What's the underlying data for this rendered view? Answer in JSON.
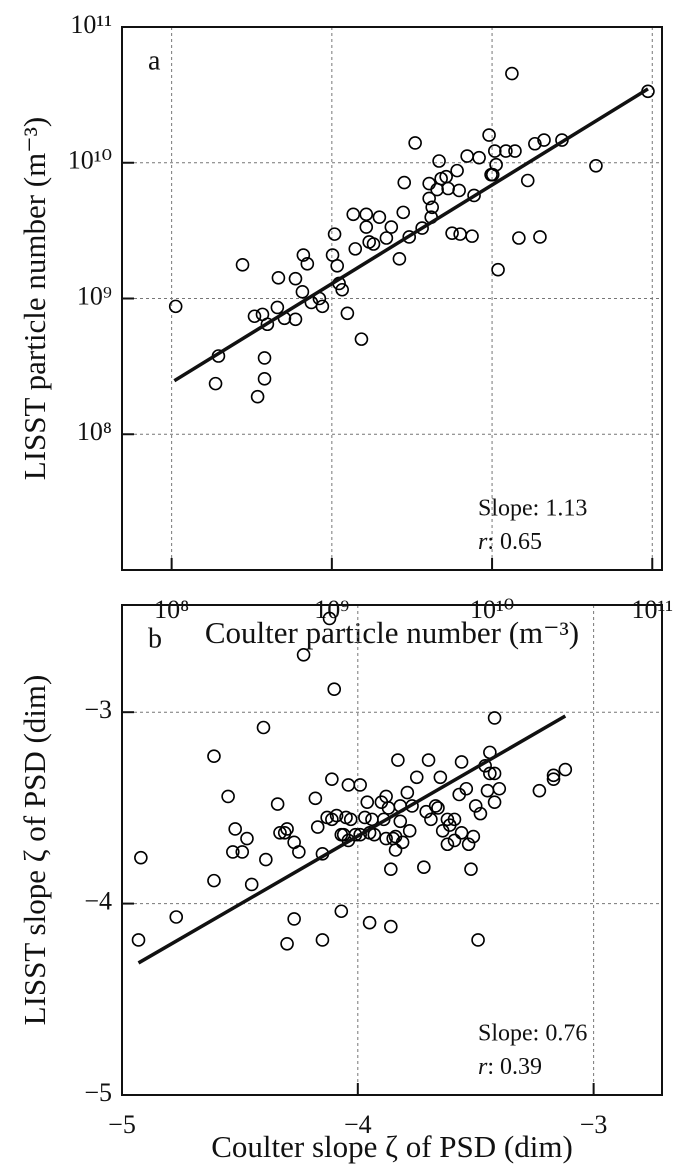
{
  "chart_data": [
    {
      "type": "scatter",
      "label": "a",
      "log": true,
      "grid": true,
      "xlabel": "Coulter particle number (m⁻³)",
      "ylabel": "LISST particle number (m⁻³)",
      "xlim": [
        49000000,
        115000000000
      ],
      "ylim": [
        10000000,
        100000000000
      ],
      "xticks": [
        {
          "value": 100000000,
          "label": "10⁸"
        },
        {
          "value": 1000000000,
          "label": "10⁹"
        },
        {
          "value": 10000000000,
          "label": "10¹⁰"
        },
        {
          "value": 100000000000,
          "label": "10¹¹"
        }
      ],
      "yticks": [
        {
          "value": 100000000,
          "label": "10⁸"
        },
        {
          "value": 1000000000,
          "label": "10⁹"
        },
        {
          "value": 10000000000,
          "label": "10¹⁰"
        },
        {
          "value": 100000000000,
          "label": "10¹¹"
        }
      ],
      "series": [
        {
          "color": "#000000",
          "x": [
            106000000.0,
            188000000.0,
            196000000.0,
            277000000.0,
            329000000.0,
            344000000.0,
            369000000.0,
            380000000.0,
            380000000.0,
            396000000.0,
            457000000.0,
            464000000.0,
            506000000.0,
            593000000.0,
            593000000.0,
            655000000.0,
            664000000.0,
            703000000.0,
            745000000.0,
            836000000.0,
            873000000.0,
            1010000000.0,
            1040000000.0,
            1080000000.0,
            1110000000.0,
            1160000000.0,
            1250000000.0,
            1360000000.0,
            1400000000.0,
            1530000000.0,
            1640000000.0,
            1640000000.0,
            1710000000.0,
            1820000000.0,
            1980000000.0,
            2190000000.0,
            2350000000.0,
            2640000000.0,
            2790000000.0,
            2830000000.0,
            3040000000.0,
            3310000000.0,
            3660000000.0,
            4050000000.0,
            4230000000.0,
            4540000000.0,
            4670000000.0,
            4810000000.0,
            5170000000.0,
            5320000000.0,
            5630000000.0,
            6050000000.0,
            6230000000.0,
            6990000000.0,
            7720000000.0,
            8300000000.0,
            9580000000.0,
            9860000000.0,
            10100000000.0,
            10400000000.0,
            10600000000.0,
            10900000000.0,
            12200000000.0,
            13900000000.0,
            14700000000.0,
            16700000000.0,
            18500000000.0,
            21100000000.0,
            27300000000.0,
            94000000000.0,
            13300000000.0,
            19900000000.0,
            7500000000.0,
            6320000000.0,
            4050000000.0,
            4170000000.0,
            44500000000.0
          ],
          "y": [
            875000000.0,
            236000000.0,
            377000000.0,
            1770000000.0,
            740000000.0,
            189000000.0,
            764000000.0,
            365000000.0,
            256000000.0,
            646000000.0,
            860000000.0,
            1420000000.0,
            715000000.0,
            1400000000.0,
            703000000.0,
            1120000000.0,
            2090000000.0,
            1800000000.0,
            935000000.0,
            1000000000.0,
            875000000.0,
            2090000000.0,
            2980000000.0,
            1740000000.0,
            1290000000.0,
            1160000000.0,
            778000000.0,
            4170000000.0,
            2320000000.0,
            502000000.0,
            3360000000.0,
            4170000000.0,
            2610000000.0,
            2520000000.0,
            3970000000.0,
            2790000000.0,
            3360000000.0,
            1960000000.0,
            4310000000.0,
            7150000000.0,
            2840000000.0,
            14000000000.0,
            3300000000.0,
            5460000000.0,
            4700000000.0,
            6350000000.0,
            10300000000.0,
            7640000000.0,
            7900000000.0,
            6460000000.0,
            3030000000.0,
            8750000000.0,
            6250000000.0,
            11200000000.0,
            5740000000.0,
            10900000000.0,
            16000000000.0,
            8170000000.0,
            8170000000.0,
            12200000000.0,
            9670000000.0,
            1630000000.0,
            12200000000.0,
            12200000000.0,
            2790000000.0,
            7400000000.0,
            13800000000.0,
            14700000000.0,
            14700000000.0,
            33600000000.0,
            45400000000.0,
            2840000000.0,
            2880000000.0,
            2980000000.0,
            7030000000.0,
            3970000000.0,
            9500000000.0
          ]
        }
      ],
      "fit_line": {
        "x": [
          104000000.0,
          94000000000.0
        ],
        "y": [
          248000000.0,
          35000000000.0
        ]
      },
      "annotations": [
        "Slope: 1.13",
        "r: 0.65"
      ]
    },
    {
      "type": "scatter",
      "label": "b",
      "log": false,
      "grid": true,
      "xlabel": "Coulter slope ζ of PSD (dim)",
      "ylabel": "LISST slope ζ of PSD (dim)",
      "xlim": [
        -5,
        -2.71
      ],
      "ylim": [
        -5,
        -2.44
      ],
      "xticks": [
        {
          "value": -5,
          "label": "−5"
        },
        {
          "value": -4,
          "label": "−4"
        },
        {
          "value": -3,
          "label": "−3"
        }
      ],
      "yticks": [
        {
          "value": -5,
          "label": "−5"
        },
        {
          "value": -4,
          "label": "−4"
        },
        {
          "value": -3,
          "label": "−3"
        }
      ],
      "series": [
        {
          "color": "#000000",
          "x": [
            -4.93,
            -4.92,
            -4.77,
            -4.61,
            -4.61,
            -4.55,
            -4.53,
            -4.52,
            -4.49,
            -4.47,
            -4.45,
            -4.4,
            -4.39,
            -4.34,
            -4.33,
            -4.31,
            -4.3,
            -4.3,
            -4.27,
            -4.27,
            -4.25,
            -4.23,
            -4.18,
            -4.17,
            -4.15,
            -4.15,
            -4.13,
            -4.12,
            -4.11,
            -4.11,
            -4.1,
            -4.09,
            -4.07,
            -4.06,
            -4.07,
            -4.05,
            -4.04,
            -4.04,
            -4.03,
            -4.01,
            -3.99,
            -3.99,
            -3.97,
            -3.96,
            -3.95,
            -3.95,
            -3.94,
            -3.93,
            -3.9,
            -3.89,
            -3.88,
            -3.88,
            -3.87,
            -3.86,
            -3.86,
            -3.85,
            -3.84,
            -3.84,
            -3.83,
            -3.82,
            -3.82,
            -3.81,
            -3.79,
            -3.78,
            -3.77,
            -3.75,
            -3.72,
            -3.71,
            -3.7,
            -3.69,
            -3.67,
            -3.66,
            -3.65,
            -3.64,
            -3.62,
            -3.62,
            -3.61,
            -3.59,
            -3.59,
            -3.57,
            -3.56,
            -3.56,
            -3.54,
            -3.53,
            -3.52,
            -3.51,
            -3.5,
            -3.49,
            -3.48,
            -3.46,
            -3.45,
            -3.44,
            -3.44,
            -3.42,
            -3.42,
            -3.42,
            -3.4,
            -3.23,
            -3.17,
            -3.17,
            -3.12
          ],
          "y": [
            -4.19,
            -3.76,
            -4.07,
            -3.88,
            -3.23,
            -3.44,
            -3.73,
            -3.61,
            -3.73,
            -3.66,
            -3.9,
            -3.08,
            -3.77,
            -3.48,
            -3.63,
            -3.63,
            -3.61,
            -4.21,
            -3.68,
            -4.08,
            -3.73,
            -2.7,
            -3.45,
            -3.6,
            -4.19,
            -3.74,
            -3.55,
            -2.51,
            -3.35,
            -3.56,
            -2.88,
            -3.54,
            -3.64,
            -3.64,
            -4.04,
            -3.55,
            -3.38,
            -3.67,
            -3.56,
            -3.64,
            -3.38,
            -3.64,
            -3.55,
            -3.47,
            -3.63,
            -4.1,
            -3.56,
            -3.64,
            -3.47,
            -3.56,
            -3.66,
            -3.44,
            -3.5,
            -3.82,
            -4.12,
            -3.66,
            -3.65,
            -3.72,
            -3.25,
            -3.49,
            -3.57,
            -3.68,
            -3.42,
            -3.62,
            -3.49,
            -3.34,
            -3.81,
            -3.52,
            -3.25,
            -3.56,
            -3.49,
            -3.5,
            -3.34,
            -3.62,
            -3.56,
            -3.69,
            -3.59,
            -3.56,
            -3.67,
            -3.43,
            -3.26,
            -3.63,
            -3.4,
            -3.69,
            -3.82,
            -3.65,
            -3.49,
            -4.19,
            -3.53,
            -3.28,
            -3.41,
            -3.21,
            -3.32,
            -3.47,
            -3.03,
            -3.32,
            -3.4,
            -3.41,
            -3.35,
            -3.33,
            -3.3
          ]
        }
      ],
      "fit_line": {
        "x": [
          -4.93,
          -3.12
        ],
        "y": [
          -4.31,
          -3.02
        ]
      },
      "annotations": [
        "Slope: 0.76",
        "r: 0.39"
      ]
    }
  ]
}
